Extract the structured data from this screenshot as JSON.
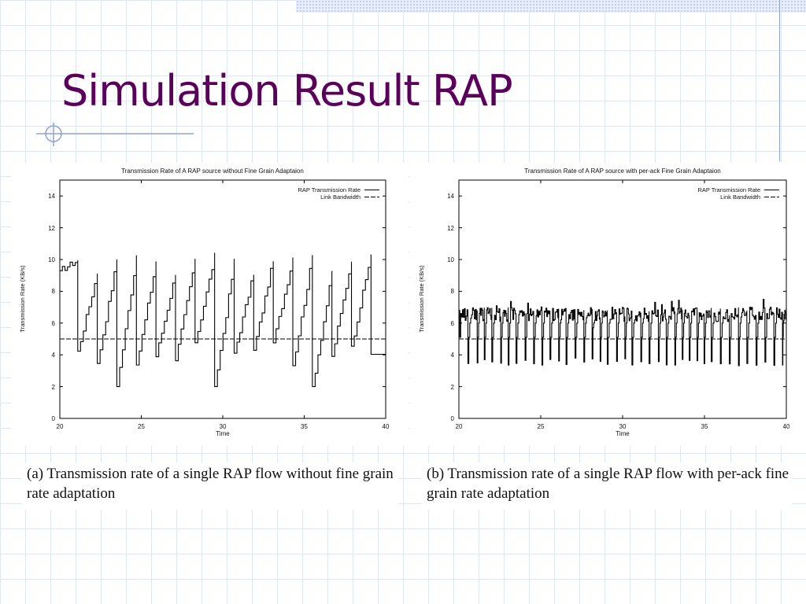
{
  "slide": {
    "title": "Simulation Result RAP",
    "accent_color": "#5a005a"
  },
  "captions": {
    "a": "(a) Transmission rate of a single RAP flow without fine grain rate  adaptation",
    "b": "(b) Transmission rate of a single RAP flow with per-ack fine  grain rate adaptation"
  },
  "chart_data": [
    {
      "type": "line",
      "title": "Transmission Rate of A RAP source without Fine Grain Adaptaion",
      "xlabel": "Time",
      "ylabel": "Transmission Rate (KB/s)",
      "xlim": [
        20,
        40
      ],
      "ylim": [
        0,
        15
      ],
      "xticks": [
        "20",
        "25",
        "30",
        "35",
        "40"
      ],
      "yticks": [
        "0",
        "2",
        "4",
        "6",
        "8",
        "10",
        "12",
        "14"
      ],
      "legend_position": "top-right",
      "grid": false,
      "series": [
        {
          "name": "RAP Transmission Rate",
          "style": "solid",
          "pattern": "sawtooth",
          "period": 1.2,
          "min": 2.0,
          "max": 10.4,
          "peak_times": [
            21.1,
            22.3,
            23.5,
            24.7,
            25.9,
            27.1,
            28.3,
            29.5,
            30.7,
            31.9,
            33.1,
            34.3,
            35.5,
            36.7,
            37.9,
            39.1
          ]
        },
        {
          "name": "Link Bandwidth",
          "style": "dashed",
          "x": [
            20,
            40
          ],
          "y": [
            5,
            5
          ]
        }
      ]
    },
    {
      "type": "line",
      "title": "Transmission Rate of A RAP source with per-ack Fine Grain Adaptaion",
      "xlabel": "Time",
      "ylabel": "Transmission Rate (KB/s)",
      "xlim": [
        20,
        40
      ],
      "ylim": [
        0,
        15
      ],
      "xticks": [
        "20",
        "25",
        "30",
        "35",
        "40"
      ],
      "yticks": [
        "0",
        "2",
        "4",
        "6",
        "8",
        "10",
        "12",
        "14"
      ],
      "legend_position": "top-right",
      "grid": false,
      "series": [
        {
          "name": "RAP Transmission Rate",
          "style": "solid",
          "pattern": "sawtooth",
          "period": 0.5,
          "min": 3.3,
          "max": 7.5,
          "typical_high": 6.5
        },
        {
          "name": "Link Bandwidth",
          "style": "dashed",
          "x": [
            20,
            40
          ],
          "y": [
            5,
            5
          ]
        }
      ]
    }
  ]
}
